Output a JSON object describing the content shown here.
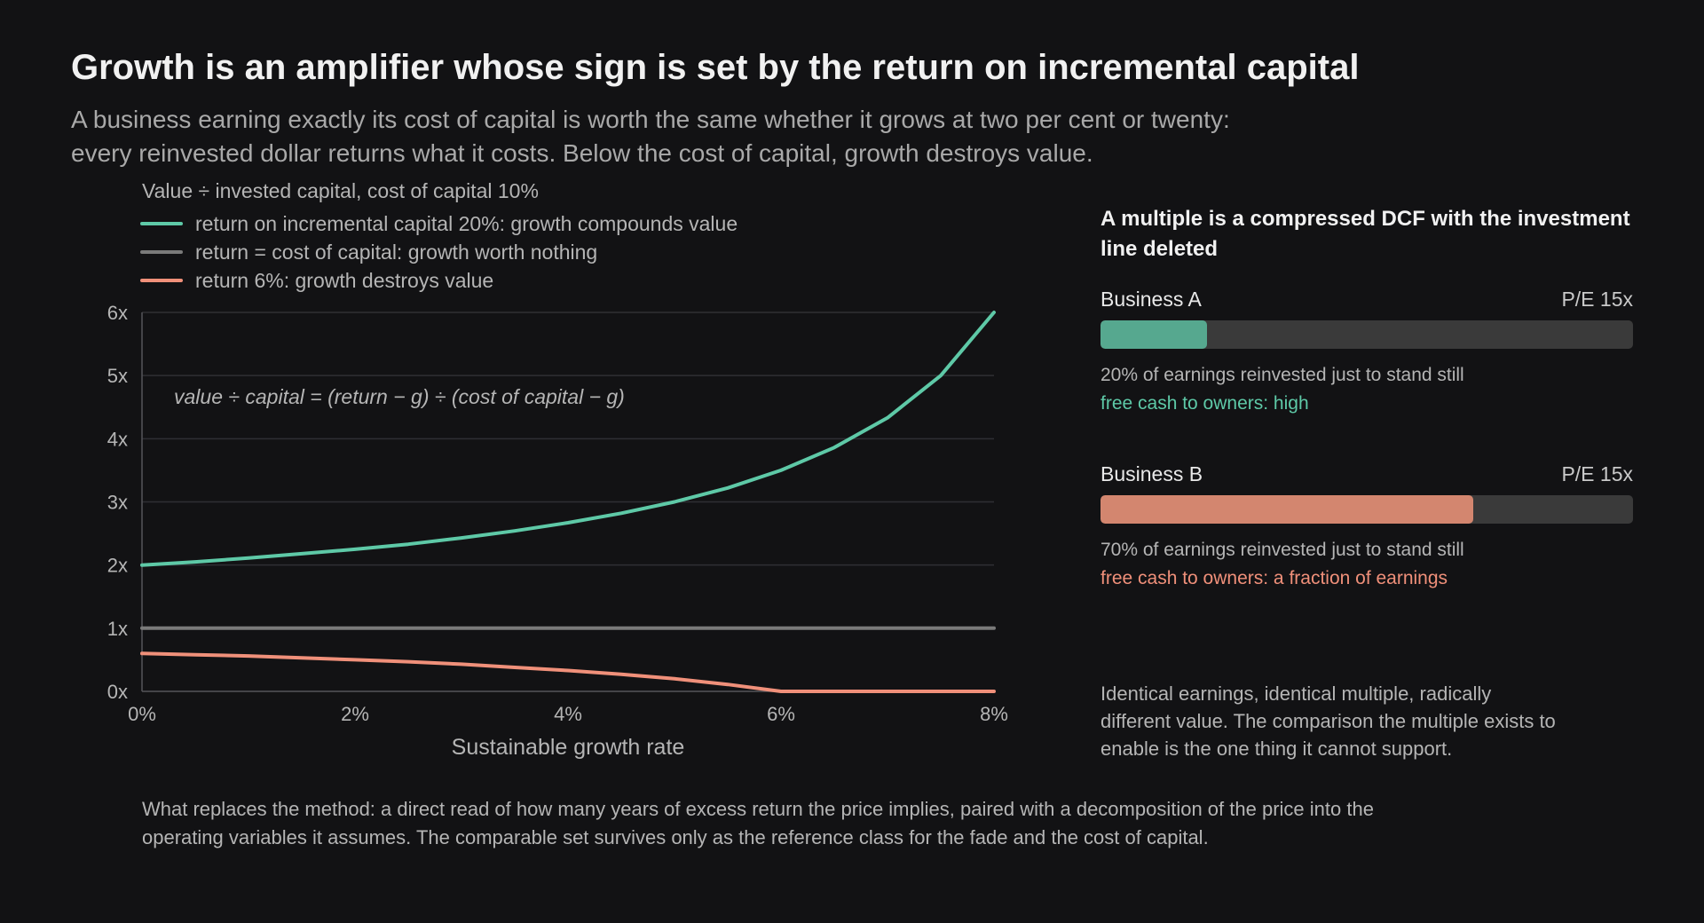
{
  "title": "Growth is an amplifier whose sign is set by the return on incremental capital",
  "subtitle": {
    "line1": "A business earning exactly its cost of capital is worth the same whether it grows at two per cent or twenty:",
    "line2": "every reinvested dollar returns what it costs. Below the cost of capital, growth destroys value."
  },
  "colors": {
    "background": "#121214",
    "high_return": "#5ec9a7",
    "neutral": "#7a7a7a",
    "low_return": "#f0907a",
    "bar_a": "#56a88f",
    "bar_b": "#d3866f",
    "bar_track": "#3a3a3a",
    "cash_a": "#5ec9a7",
    "cash_b": "#f0907a"
  },
  "chart_data": {
    "type": "line",
    "title": "Value ÷ invested capital, cost of capital 10%",
    "xlabel": "Sustainable growth rate",
    "ylabel": "",
    "xlim": [
      0,
      8
    ],
    "ylim": [
      0,
      6
    ],
    "x_ticks": [
      "0%",
      "2%",
      "4%",
      "6%",
      "8%"
    ],
    "x_tick_values": [
      0,
      2,
      4,
      6,
      8
    ],
    "y_ticks": [
      "0x",
      "1x",
      "2x",
      "3x",
      "4x",
      "5x",
      "6x"
    ],
    "y_tick_values": [
      0,
      1,
      2,
      3,
      4,
      5,
      6
    ],
    "grid": true,
    "legend_position": "top-left",
    "annotation": "value ÷ capital = (return − g) ÷ (cost of capital − g)",
    "x": [
      0,
      0.5,
      1,
      1.5,
      2,
      2.5,
      3,
      3.5,
      4,
      4.5,
      5,
      5.5,
      6,
      6.5,
      7,
      7.5,
      8
    ],
    "series": [
      {
        "name": "return on incremental capital 20%: growth compounds value",
        "color_key": "high_return",
        "values": [
          2.0,
          2.05,
          2.11,
          2.18,
          2.25,
          2.33,
          2.43,
          2.54,
          2.67,
          2.82,
          3.0,
          3.22,
          3.5,
          3.86,
          4.33,
          5.0,
          6.0
        ]
      },
      {
        "name": "return = cost of capital: growth worth nothing",
        "color_key": "neutral",
        "values": [
          1,
          1,
          1,
          1,
          1,
          1,
          1,
          1,
          1,
          1,
          1,
          1,
          1,
          1,
          1,
          1,
          1
        ]
      },
      {
        "name": "return 6%: growth destroys value",
        "color_key": "low_return",
        "values": [
          0.6,
          0.58,
          0.56,
          0.53,
          0.5,
          0.47,
          0.43,
          0.38,
          0.33,
          0.27,
          0.2,
          0.11,
          0.0,
          0.0,
          0.0,
          0.0,
          0.0
        ]
      }
    ]
  },
  "panel": {
    "title": "A multiple is a compressed DCF with the investment line deleted",
    "businesses": [
      {
        "name": "Business A",
        "pe": "P/E 15x",
        "reinvest_fraction": 0.2,
        "note": "20% of earnings reinvested just to stand still",
        "cash": "free cash to owners: high"
      },
      {
        "name": "Business B",
        "pe": "P/E 15x",
        "reinvest_fraction": 0.7,
        "note": "70% of earnings reinvested just to stand still",
        "cash": "free cash to owners: a fraction of earnings"
      }
    ],
    "conclusion": "Identical earnings, identical multiple, radically different value. The comparison the multiple exists to enable is the one thing it cannot support."
  },
  "footnote": "What replaces the method: a direct read of how many years of excess return the price implies, paired with a decomposition of the price into the operating variables it assumes. The comparable set survives only as the reference class for the fade and the cost of capital."
}
